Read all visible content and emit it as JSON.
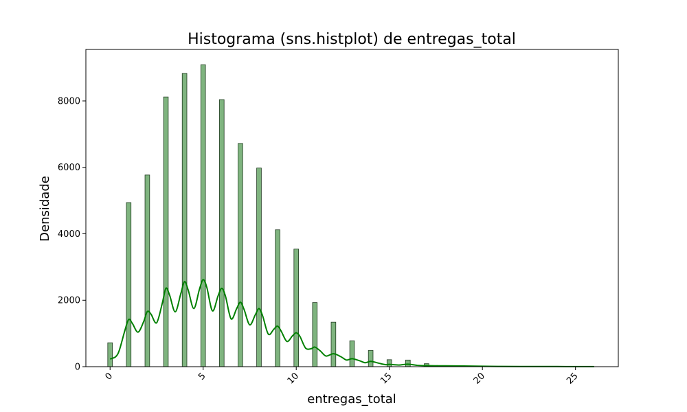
{
  "chart_data": {
    "type": "bar",
    "title": "Histograma (sns.histplot) de entregas_total",
    "xlabel": "entregas_total",
    "ylabel": "Densidade",
    "xlim": [
      -1.3,
      27.3
    ],
    "ylim": [
      0,
      9550
    ],
    "x_ticks": [
      0,
      5,
      10,
      15,
      20,
      25
    ],
    "y_ticks": [
      0,
      2000,
      4000,
      6000,
      8000
    ],
    "grid": false,
    "bar_color": "#7fb47f",
    "kde_color": "#008000",
    "series": [
      {
        "values": [
          {
            "x": 0,
            "y": 720
          },
          {
            "x": 1,
            "y": 4940
          },
          {
            "x": 2,
            "y": 5770
          },
          {
            "x": 3,
            "y": 8120
          },
          {
            "x": 4,
            "y": 8830
          },
          {
            "x": 5,
            "y": 9090
          },
          {
            "x": 6,
            "y": 8040
          },
          {
            "x": 7,
            "y": 6720
          },
          {
            "x": 8,
            "y": 5980
          },
          {
            "x": 9,
            "y": 4120
          },
          {
            "x": 10,
            "y": 3540
          },
          {
            "x": 11,
            "y": 1930
          },
          {
            "x": 12,
            "y": 1340
          },
          {
            "x": 13,
            "y": 780
          },
          {
            "x": 14,
            "y": 490
          },
          {
            "x": 15,
            "y": 210
          },
          {
            "x": 16,
            "y": 200
          },
          {
            "x": 17,
            "y": 90
          },
          {
            "x": 18,
            "y": 30
          },
          {
            "x": 19,
            "y": 15
          },
          {
            "x": 20,
            "y": 8
          },
          {
            "x": 21,
            "y": 5
          },
          {
            "x": 22,
            "y": 3
          },
          {
            "x": 23,
            "y": 2
          },
          {
            "x": 24,
            "y": 2
          },
          {
            "x": 25,
            "y": 1
          },
          {
            "x": 26,
            "y": 1
          }
        ]
      }
    ],
    "kde": [
      {
        "x": 0.0,
        "y": 230
      },
      {
        "x": 0.3,
        "y": 300
      },
      {
        "x": 0.5,
        "y": 500
      },
      {
        "x": 0.8,
        "y": 1100
      },
      {
        "x": 1.0,
        "y": 1420
      },
      {
        "x": 1.2,
        "y": 1300
      },
      {
        "x": 1.5,
        "y": 1040
      },
      {
        "x": 1.8,
        "y": 1350
      },
      {
        "x": 2.0,
        "y": 1660
      },
      {
        "x": 2.2,
        "y": 1580
      },
      {
        "x": 2.5,
        "y": 1320
      },
      {
        "x": 2.8,
        "y": 1900
      },
      {
        "x": 3.0,
        "y": 2360
      },
      {
        "x": 3.2,
        "y": 2150
      },
      {
        "x": 3.5,
        "y": 1650
      },
      {
        "x": 3.8,
        "y": 2200
      },
      {
        "x": 4.0,
        "y": 2560
      },
      {
        "x": 4.2,
        "y": 2300
      },
      {
        "x": 4.5,
        "y": 1750
      },
      {
        "x": 4.8,
        "y": 2330
      },
      {
        "x": 5.0,
        "y": 2620
      },
      {
        "x": 5.2,
        "y": 2380
      },
      {
        "x": 5.5,
        "y": 1680
      },
      {
        "x": 5.8,
        "y": 2130
      },
      {
        "x": 6.0,
        "y": 2360
      },
      {
        "x": 6.2,
        "y": 2120
      },
      {
        "x": 6.5,
        "y": 1440
      },
      {
        "x": 6.8,
        "y": 1750
      },
      {
        "x": 7.0,
        "y": 1940
      },
      {
        "x": 7.2,
        "y": 1720
      },
      {
        "x": 7.5,
        "y": 1260
      },
      {
        "x": 7.8,
        "y": 1560
      },
      {
        "x": 8.0,
        "y": 1750
      },
      {
        "x": 8.2,
        "y": 1520
      },
      {
        "x": 8.5,
        "y": 980
      },
      {
        "x": 8.8,
        "y": 1130
      },
      {
        "x": 9.0,
        "y": 1220
      },
      {
        "x": 9.2,
        "y": 1060
      },
      {
        "x": 9.5,
        "y": 760
      },
      {
        "x": 9.8,
        "y": 930
      },
      {
        "x": 10.0,
        "y": 1020
      },
      {
        "x": 10.2,
        "y": 910
      },
      {
        "x": 10.5,
        "y": 560
      },
      {
        "x": 10.8,
        "y": 540
      },
      {
        "x": 11.0,
        "y": 590
      },
      {
        "x": 11.3,
        "y": 470
      },
      {
        "x": 11.6,
        "y": 320
      },
      {
        "x": 12.0,
        "y": 390
      },
      {
        "x": 12.4,
        "y": 300
      },
      {
        "x": 12.7,
        "y": 200
      },
      {
        "x": 13.0,
        "y": 240
      },
      {
        "x": 13.4,
        "y": 180
      },
      {
        "x": 13.7,
        "y": 120
      },
      {
        "x": 14.0,
        "y": 160
      },
      {
        "x": 14.4,
        "y": 110
      },
      {
        "x": 14.8,
        "y": 60
      },
      {
        "x": 15.0,
        "y": 70
      },
      {
        "x": 15.5,
        "y": 50
      },
      {
        "x": 16.0,
        "y": 75
      },
      {
        "x": 16.5,
        "y": 40
      },
      {
        "x": 17.0,
        "y": 30
      },
      {
        "x": 18.0,
        "y": 25
      },
      {
        "x": 19.0,
        "y": 20
      },
      {
        "x": 20.0,
        "y": 12
      },
      {
        "x": 21.0,
        "y": 8
      },
      {
        "x": 22.0,
        "y": 6
      },
      {
        "x": 23.0,
        "y": 5
      },
      {
        "x": 24.0,
        "y": 4
      },
      {
        "x": 25.0,
        "y": 3
      },
      {
        "x": 26.0,
        "y": 2
      }
    ]
  }
}
